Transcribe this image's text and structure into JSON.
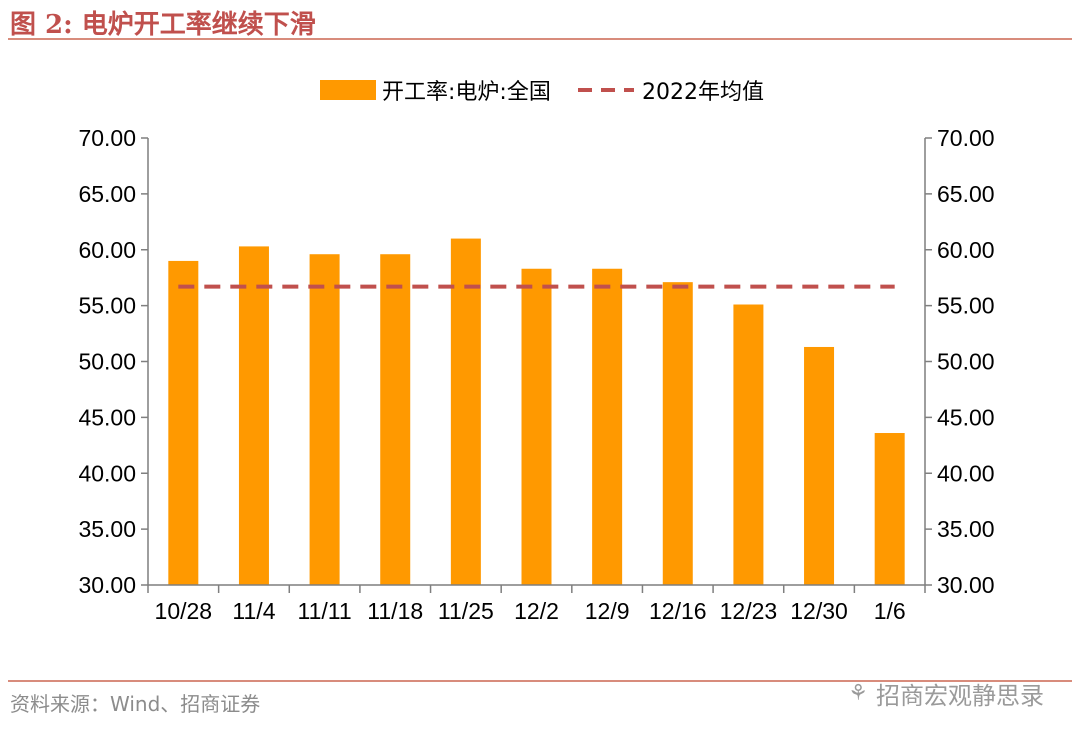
{
  "figure": {
    "title": "图 2:  电炉开工率继续下滑",
    "source": "资料来源：Wind、招商证券",
    "watermark": "招商宏观静思录",
    "watermark_icon": "wechat-icon"
  },
  "chart_data": {
    "type": "bar",
    "title": "",
    "categories": [
      "10/28",
      "11/4",
      "11/11",
      "11/18",
      "11/25",
      "12/2",
      "12/9",
      "12/16",
      "12/23",
      "12/30",
      "1/6"
    ],
    "series": [
      {
        "name": "开工率:电炉:全国",
        "type": "bar",
        "color": "#ff9900",
        "values": [
          59.0,
          60.3,
          59.6,
          59.6,
          61.0,
          58.3,
          58.3,
          57.1,
          55.1,
          51.3,
          43.6
        ]
      },
      {
        "name": "2022年均值",
        "type": "line",
        "style": "dashed",
        "color": "#c0504d",
        "values": [
          56.7,
          56.7,
          56.7,
          56.7,
          56.7,
          56.7,
          56.7,
          56.7,
          56.7,
          56.7,
          56.7
        ]
      }
    ],
    "ylim": [
      30,
      70
    ],
    "yticks": [
      "30.00",
      "35.00",
      "40.00",
      "45.00",
      "50.00",
      "55.00",
      "60.00",
      "65.00",
      "70.00"
    ],
    "y2ticks": [
      "30.00",
      "35.00",
      "40.00",
      "45.00",
      "50.00",
      "55.00",
      "60.00",
      "65.00",
      "70.00"
    ],
    "xlabel": "",
    "ylabel": "",
    "legend": "top-center"
  }
}
